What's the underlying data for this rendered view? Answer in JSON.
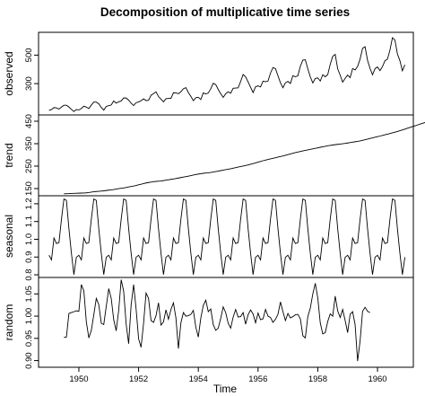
{
  "chart_data": {
    "type": "line",
    "title": "Decomposition of multiplicative time series",
    "xlabel": "Time",
    "xlim": [
      1948.65,
      1961.2
    ],
    "x_ticks": [
      "1950",
      "1952",
      "1954",
      "1956",
      "1958",
      "1960"
    ],
    "x_tick_values": [
      1950,
      1952,
      1954,
      1956,
      1958,
      1960
    ],
    "panels": [
      {
        "name": "observed",
        "ylabel": "observed",
        "ylim": [
          80,
          660
        ],
        "y_ticks": [
          "300",
          "500"
        ],
        "y_tick_values": [
          300,
          500
        ],
        "start": 1949.0,
        "step": 0.083333,
        "values": [
          112,
          118,
          132,
          129,
          121,
          135,
          148,
          148,
          136,
          119,
          104,
          118,
          115,
          126,
          141,
          135,
          125,
          149,
          170,
          170,
          158,
          133,
          114,
          140,
          145,
          150,
          178,
          163,
          172,
          178,
          199,
          199,
          184,
          162,
          146,
          166,
          171,
          180,
          193,
          181,
          183,
          218,
          230,
          242,
          209,
          191,
          172,
          194,
          196,
          196,
          236,
          235,
          229,
          243,
          264,
          272,
          237,
          211,
          180,
          201,
          204,
          188,
          235,
          227,
          234,
          264,
          302,
          293,
          259,
          229,
          203,
          229,
          242,
          233,
          267,
          269,
          270,
          315,
          364,
          347,
          312,
          274,
          237,
          278,
          284,
          277,
          317,
          313,
          318,
          374,
          413,
          405,
          355,
          306,
          271,
          306,
          315,
          301,
          356,
          348,
          355,
          422,
          465,
          467,
          404,
          347,
          305,
          336,
          340,
          318,
          362,
          348,
          363,
          435,
          491,
          505,
          404,
          359,
          310,
          337,
          360,
          342,
          406,
          396,
          420,
          472,
          548,
          559,
          463,
          407,
          362,
          405,
          417,
          391,
          419,
          461,
          472,
          535,
          622,
          606,
          508,
          461,
          390,
          432
        ]
      },
      {
        "name": "trend",
        "ylabel": "trend",
        "ylim": [
          118,
          478
        ],
        "y_ticks": [
          "150",
          "250",
          "350",
          "450"
        ],
        "y_tick_values": [
          150,
          250,
          350,
          450
        ],
        "start": 1949.5,
        "step": 0.083333,
        "values": [
          126.8,
          127.2,
          127.6,
          128.3,
          128.8,
          129.2,
          129.5,
          130.0,
          130.3,
          131.0,
          132.3,
          134.1,
          135.8,
          137.0,
          137.8,
          138.8,
          140.0,
          141.5,
          143.0,
          144.1,
          145.6,
          147.8,
          149.8,
          151.3,
          152.6,
          154.8,
          157.2,
          159.3,
          161.3,
          163.8,
          166.7,
          169.4,
          172.4,
          175.0,
          177.0,
          178.8,
          180.6,
          182.0,
          182.9,
          183.9,
          185.5,
          187.6,
          189.4,
          191.0,
          192.7,
          194.8,
          197.0,
          199.0,
          201.1,
          203.2,
          205.4,
          207.8,
          210.2,
          212.6,
          214.5,
          216.3,
          218.0,
          219.2,
          220.2,
          221.8,
          223.6,
          225.8,
          227.9,
          230.0,
          232.2,
          234.1,
          236.3,
          238.5,
          240.7,
          243.1,
          245.6,
          248.1,
          250.4,
          252.8,
          255.5,
          258.3,
          261.3,
          264.3,
          267.6,
          270.8,
          274.0,
          276.9,
          279.8,
          282.3,
          284.8,
          287.4,
          290.1,
          292.8,
          295.5,
          298.4,
          301.4,
          304.3,
          307.3,
          310.1,
          312.8,
          315.3,
          317.8,
          320.3,
          322.5,
          324.7,
          326.9,
          329.2,
          331.5,
          334.0,
          336.4,
          338.5,
          340.6,
          342.4,
          344.0,
          345.5,
          347.0,
          348.4,
          349.9,
          351.4,
          353.0,
          354.8,
          356.7,
          358.5,
          360.3,
          362.3,
          364.8,
          367.6,
          370.4,
          373.2,
          375.9,
          378.6,
          381.3,
          384.0,
          386.8,
          389.6,
          392.5,
          395.4,
          398.4,
          401.4,
          404.5,
          407.7,
          411.2,
          414.9,
          418.6,
          422.2,
          425.8,
          429.4,
          433.0,
          436.6,
          440.2,
          443.8,
          447.5,
          451.0,
          454.7,
          457.3
        ]
      },
      {
        "name": "seasonal",
        "ylabel": "seasonal",
        "ylim": [
          0.785,
          1.245
        ],
        "y_ticks": [
          "0.8",
          "0.9",
          "1.0",
          "1.1",
          "1.2"
        ],
        "y_tick_values": [
          0.8,
          0.9,
          1.0,
          1.1,
          1.2
        ],
        "start": 1949.0,
        "step": 0.083333,
        "cycles": 12,
        "pattern": [
          0.91,
          0.884,
          1.007,
          0.976,
          0.981,
          1.113,
          1.227,
          1.219,
          1.06,
          0.922,
          0.801,
          0.899
        ]
      },
      {
        "name": "random",
        "ylabel": "random",
        "ylim": [
          0.885,
          1.087
        ],
        "y_ticks": [
          "0.90",
          "0.95",
          "1.00",
          "1.05"
        ],
        "y_tick_values": [
          0.9,
          0.95,
          1.0,
          1.05
        ],
        "start": 1949.5,
        "step": 0.083333,
        "values": [
          0.952,
          0.953,
          1.006,
          1.008,
          1.01,
          1.012,
          1.011,
          1.071,
          1.057,
          0.987,
          0.951,
          0.968,
          1.003,
          1.04,
          1.026,
          0.984,
          0.981,
          1.022,
          1.062,
          1.04,
          0.992,
          0.967,
          1.013,
          1.082,
          1.056,
          0.982,
          0.938,
          1.025,
          1.071,
          1.016,
          0.949,
          0.93,
          0.984,
          1.052,
          1.04,
          0.99,
          0.986,
          1.001,
          1.03,
          0.98,
          0.987,
          1.014,
          0.993,
          1.015,
          1.03,
          0.996,
          0.927,
          0.985,
          1.008,
          1.0,
          1.001,
          1.004,
          1.013,
          0.975,
          0.953,
          0.996,
          1.024,
          1.036,
          1.01,
          1.016,
          0.981,
          0.968,
          0.973,
          0.995,
          1.021,
          1.008,
          0.984,
          0.973,
          0.998,
          1.015,
          0.998,
          0.999,
          1.008,
          0.982,
          1.003,
          1.014,
          1.005,
          0.985,
          1.007,
          0.992,
          0.994,
          1.015,
          1.0,
          0.997,
          0.986,
          0.993,
          1.004,
          1.032,
          1.01,
          0.99,
          1.006,
          0.996,
          0.999,
          1.003,
          1.004,
          0.994,
          0.956,
          0.951,
          0.999,
          1.018,
          1.05,
          1.074,
          1.041,
          0.985,
          0.96,
          0.963,
          0.988,
          1.005,
          1.0,
          1.045,
          1.012,
          0.997,
          1.015,
          0.99,
          0.963,
          1.004,
          1.01,
          0.981,
          0.899,
          0.944,
          1.011,
          1.02,
          1.011,
          1.008
        ]
      }
    ]
  }
}
